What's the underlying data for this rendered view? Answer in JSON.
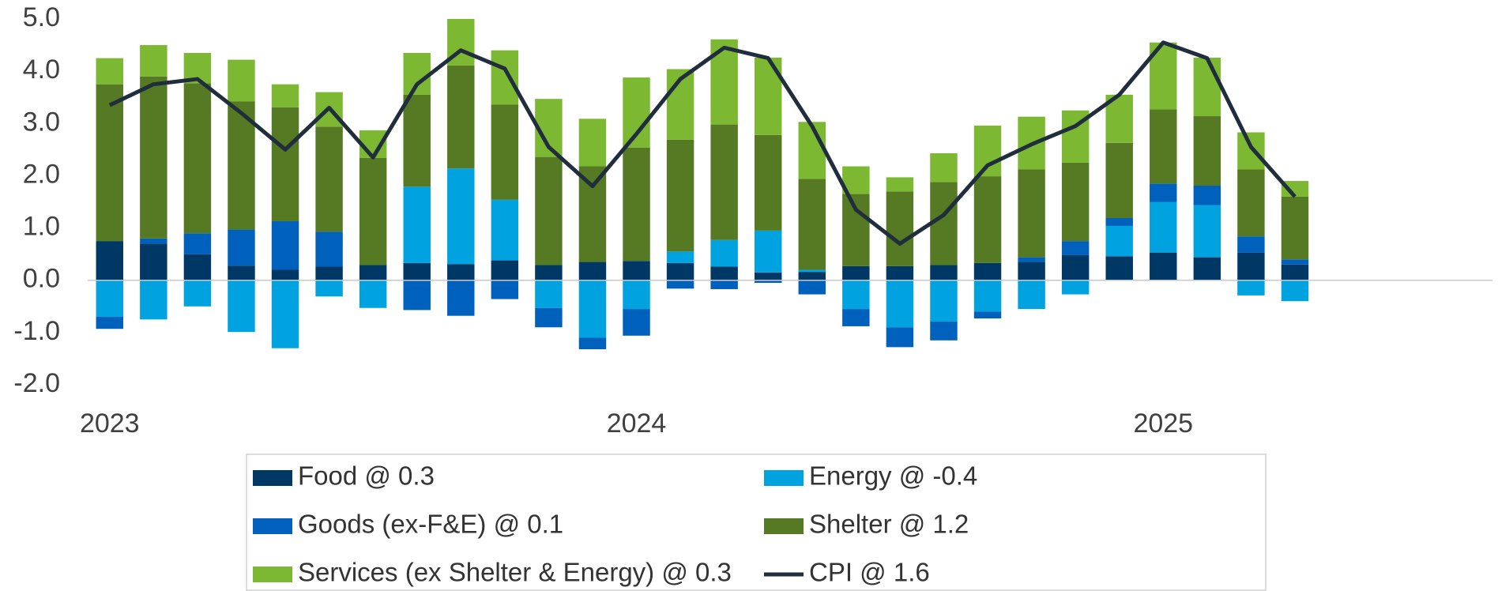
{
  "chart_data": {
    "type": "bar",
    "stacked": true,
    "categories": [
      "2023",
      null,
      null,
      null,
      null,
      null,
      null,
      null,
      null,
      null,
      null,
      null,
      "2024",
      null,
      null,
      null,
      null,
      null,
      null,
      null,
      null,
      null,
      null,
      null,
      "2025",
      null,
      null,
      null,
      null,
      null,
      null,
      null
    ],
    "series": [
      {
        "name": "Food @ 0.3",
        "color": "#003865",
        "values": [
          0.75,
          0.7,
          0.5,
          0.28,
          0.2,
          0.26,
          0.29,
          0.33,
          0.31,
          0.38,
          0.29,
          0.35,
          0.37,
          0.33,
          0.26,
          0.15,
          0.16,
          0.27,
          0.27,
          0.29,
          0.33,
          0.35,
          0.48,
          0.46,
          0.53,
          0.44,
          0.53,
          0.3,
          null,
          null,
          null,
          null
        ]
      },
      {
        "name": "Energy @ -0.4",
        "color": "#00a3e0",
        "values": [
          -0.7,
          -0.75,
          -0.5,
          -0.99,
          -1.3,
          -0.31,
          -0.53,
          1.46,
          1.83,
          1.16,
          -0.53,
          -1.1,
          -0.55,
          0.22,
          0.51,
          0.8,
          0.04,
          -0.55,
          -0.9,
          -0.79,
          -0.6,
          -0.55,
          -0.27,
          0.58,
          0.97,
          1.0,
          -0.29,
          -0.4,
          null,
          null,
          null,
          null
        ]
      },
      {
        "name": "Goods (ex-F&E) @ 0.1",
        "color": "#0061bd",
        "values": [
          -0.23,
          0.1,
          0.4,
          0.69,
          0.93,
          0.67,
          0,
          -0.57,
          -0.68,
          -0.36,
          -0.37,
          -0.22,
          -0.51,
          -0.16,
          -0.17,
          -0.05,
          -0.27,
          -0.33,
          -0.38,
          -0.36,
          -0.13,
          0.09,
          0.27,
          0.15,
          0.35,
          0.37,
          0.31,
          0.1,
          null,
          null,
          null,
          null
        ]
      },
      {
        "name": "Shelter @ 1.2",
        "color": "#557a23",
        "values": [
          3.0,
          3.1,
          2.87,
          2.45,
          2.18,
          2.01,
          2.05,
          1.76,
          1.97,
          1.82,
          2.07,
          1.83,
          2.17,
          2.14,
          2.21,
          1.83,
          1.74,
          1.38,
          1.43,
          1.59,
          1.66,
          1.68,
          1.5,
          1.44,
          1.42,
          1.33,
          1.28,
          1.2,
          null,
          null,
          null,
          null
        ]
      },
      {
        "name": "Services (ex Shelter & Energy) @ 0.3",
        "color": "#7cb832",
        "values": [
          0.5,
          0.6,
          0.58,
          0.8,
          0.44,
          0.66,
          0.53,
          0.8,
          0.89,
          1.04,
          1.11,
          0.91,
          1.34,
          1.35,
          1.63,
          1.48,
          1.09,
          0.53,
          0.27,
          0.55,
          0.97,
          1.01,
          1.0,
          0.92,
          1.28,
          1.12,
          0.71,
          0.3,
          null,
          null,
          null,
          null
        ]
      },
      {
        "name": "CPI @ 1.6",
        "color": "#1f2d3d",
        "type": "line",
        "values": [
          3.35,
          3.75,
          3.85,
          3.2,
          2.5,
          3.3,
          2.35,
          3.75,
          4.4,
          4.05,
          2.55,
          1.8,
          2.8,
          3.85,
          4.45,
          4.25,
          2.95,
          1.35,
          0.7,
          1.25,
          2.2,
          2.6,
          2.95,
          3.55,
          4.55,
          4.25,
          2.55,
          1.6,
          null,
          null,
          null,
          null
        ]
      }
    ],
    "ylim": [
      -2,
      5
    ],
    "yticks": [
      {
        "value": -2,
        "label": "-2.0"
      },
      {
        "value": -1,
        "label": "-1.0"
      },
      {
        "value": 0,
        "label": "0.0"
      },
      {
        "value": 1,
        "label": "1.0"
      },
      {
        "value": 2,
        "label": "2.0"
      },
      {
        "value": 3,
        "label": "3.0"
      },
      {
        "value": 4,
        "label": "4.0"
      },
      {
        "value": 5,
        "label": "5.0"
      }
    ],
    "grid": false,
    "legend": "bottom"
  }
}
